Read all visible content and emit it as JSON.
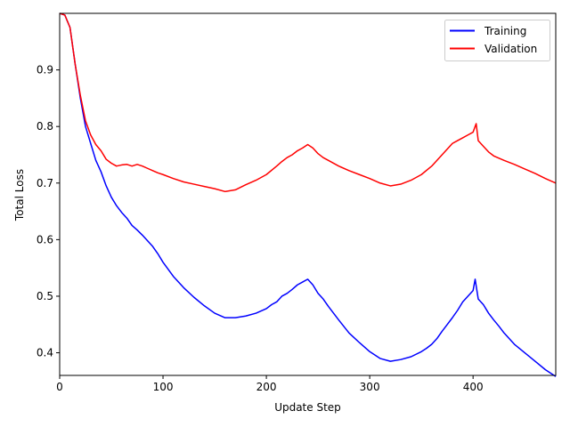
{
  "chart_data": {
    "type": "line",
    "title": "",
    "xlabel": "Update Step",
    "ylabel": "Total Loss",
    "xlim": [
      0,
      480
    ],
    "ylim": [
      0.36,
      1.0
    ],
    "xticks": [
      0,
      100,
      200,
      300,
      400
    ],
    "yticks": [
      0.4,
      0.5,
      0.6,
      0.7,
      0.8,
      0.9
    ],
    "grid": false,
    "legend": {
      "placement": "top-right"
    },
    "series": [
      {
        "name": "Training",
        "color": "#0000ff",
        "x": [
          0,
          5,
          10,
          15,
          20,
          25,
          30,
          35,
          40,
          45,
          50,
          55,
          60,
          65,
          70,
          75,
          80,
          85,
          90,
          95,
          100,
          110,
          120,
          130,
          140,
          150,
          160,
          170,
          180,
          190,
          200,
          205,
          210,
          215,
          220,
          225,
          230,
          235,
          240,
          245,
          250,
          255,
          260,
          265,
          270,
          280,
          290,
          300,
          310,
          320,
          330,
          340,
          350,
          355,
          360,
          365,
          370,
          375,
          380,
          385,
          390,
          395,
          400,
          402,
          405,
          410,
          415,
          420,
          425,
          430,
          435,
          440,
          450,
          460,
          470,
          480
        ],
        "y": [
          1.0,
          0.997,
          0.975,
          0.91,
          0.85,
          0.8,
          0.77,
          0.74,
          0.72,
          0.695,
          0.675,
          0.66,
          0.648,
          0.638,
          0.625,
          0.617,
          0.608,
          0.598,
          0.588,
          0.575,
          0.56,
          0.535,
          0.515,
          0.498,
          0.483,
          0.47,
          0.462,
          0.462,
          0.465,
          0.47,
          0.478,
          0.485,
          0.49,
          0.5,
          0.505,
          0.512,
          0.52,
          0.525,
          0.53,
          0.52,
          0.505,
          0.495,
          0.482,
          0.47,
          0.458,
          0.435,
          0.418,
          0.402,
          0.39,
          0.385,
          0.388,
          0.393,
          0.402,
          0.408,
          0.415,
          0.425,
          0.438,
          0.45,
          0.462,
          0.475,
          0.49,
          0.5,
          0.51,
          0.53,
          0.495,
          0.485,
          0.47,
          0.458,
          0.447,
          0.435,
          0.425,
          0.415,
          0.4,
          0.385,
          0.37,
          0.358
        ]
      },
      {
        "name": "Validation",
        "color": "#ff0000",
        "x": [
          0,
          5,
          10,
          15,
          20,
          25,
          30,
          35,
          40,
          45,
          50,
          55,
          60,
          65,
          70,
          75,
          80,
          85,
          90,
          95,
          100,
          110,
          120,
          130,
          140,
          150,
          160,
          170,
          180,
          190,
          200,
          210,
          215,
          220,
          225,
          230,
          235,
          240,
          245,
          250,
          255,
          260,
          270,
          280,
          290,
          300,
          310,
          320,
          330,
          340,
          350,
          360,
          365,
          370,
          375,
          380,
          385,
          390,
          395,
          400,
          403,
          405,
          410,
          415,
          420,
          430,
          440,
          450,
          460,
          470,
          480
        ],
        "y": [
          1.0,
          0.997,
          0.975,
          0.91,
          0.855,
          0.81,
          0.785,
          0.768,
          0.757,
          0.742,
          0.735,
          0.73,
          0.732,
          0.733,
          0.73,
          0.733,
          0.73,
          0.726,
          0.722,
          0.718,
          0.715,
          0.708,
          0.702,
          0.698,
          0.694,
          0.69,
          0.685,
          0.688,
          0.697,
          0.705,
          0.715,
          0.73,
          0.738,
          0.745,
          0.75,
          0.757,
          0.762,
          0.768,
          0.762,
          0.752,
          0.745,
          0.74,
          0.73,
          0.722,
          0.715,
          0.708,
          0.7,
          0.695,
          0.698,
          0.705,
          0.715,
          0.73,
          0.74,
          0.75,
          0.76,
          0.77,
          0.775,
          0.78,
          0.785,
          0.79,
          0.805,
          0.775,
          0.765,
          0.755,
          0.748,
          0.74,
          0.733,
          0.725,
          0.717,
          0.708,
          0.7
        ]
      }
    ]
  }
}
